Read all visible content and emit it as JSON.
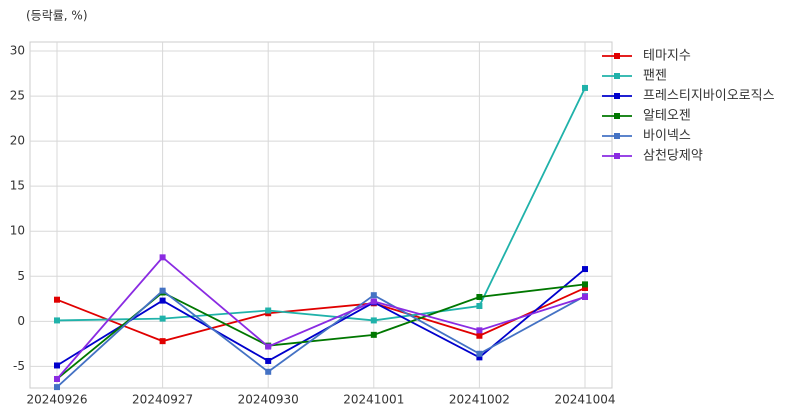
{
  "chart_data": {
    "type": "line",
    "ylabel": "(등락률, %)",
    "categories": [
      "20240926",
      "20240927",
      "20240930",
      "20241001",
      "20241002",
      "20241004"
    ],
    "series": [
      {
        "name": "테마지수",
        "color": "#e00000",
        "values": [
          2.4,
          -2.2,
          0.9,
          2.0,
          -1.6,
          3.7
        ]
      },
      {
        "name": "팬젠",
        "color": "#20b2aa",
        "values": [
          0.1,
          0.3,
          1.2,
          0.1,
          1.7,
          25.9
        ]
      },
      {
        "name": "프레스티지바이오로직스",
        "color": "#0000cc",
        "values": [
          -4.9,
          2.3,
          -4.4,
          2.1,
          -4.0,
          5.8
        ]
      },
      {
        "name": "알테오젠",
        "color": "#007700",
        "values": [
          -6.4,
          3.2,
          -2.7,
          -1.5,
          2.7,
          4.1
        ]
      },
      {
        "name": "바이넥스",
        "color": "#4472c4",
        "values": [
          -7.3,
          3.4,
          -5.6,
          2.9,
          -3.6,
          2.8
        ]
      },
      {
        "name": "삼천당제약",
        "color": "#8a2be2",
        "values": [
          -6.4,
          7.1,
          -2.8,
          2.2,
          -1.0,
          2.7
        ]
      }
    ],
    "ylim": [
      -7.4,
      31
    ],
    "yticks": [
      -5,
      0,
      5,
      10,
      15,
      20,
      25,
      30
    ],
    "grid": true,
    "legend": "right",
    "marker": "square"
  }
}
